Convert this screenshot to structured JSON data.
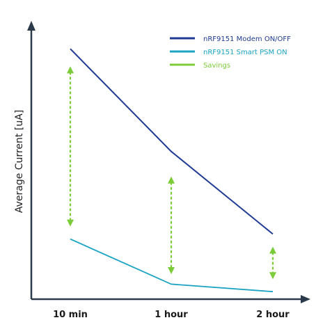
{
  "chart_data": {
    "type": "line",
    "categories": [
      "10 min",
      "1 hour",
      "2 hour"
    ],
    "title": "",
    "xlabel": "",
    "ylabel": "Average Current [uA]",
    "y_ticks_shown": false,
    "grid": false,
    "legend_position": "top-right",
    "series": [
      {
        "name": "nRF9151 Modem ON/OFF",
        "color": "#1f3a93",
        "values": [
          100,
          59,
          26
        ]
      },
      {
        "name": "nRF9151 Smart PSM ON",
        "color": "#1aa3c2",
        "values": [
          24,
          6,
          3
        ]
      },
      {
        "name": "Savings",
        "color": "#7ccc3a",
        "style": "dashed-double-arrow",
        "values": [
          [
            29,
            93
          ],
          [
            10,
            49
          ],
          [
            8,
            21
          ]
        ]
      }
    ],
    "ylim": [
      0,
      107
    ]
  }
}
